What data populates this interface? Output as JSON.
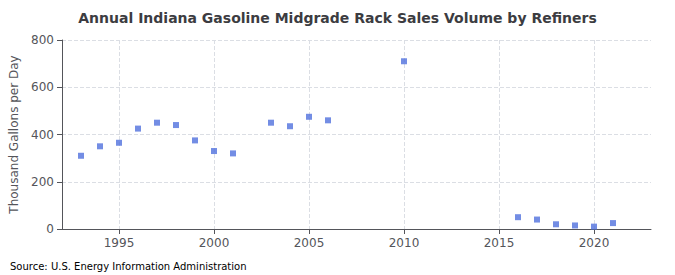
{
  "chart_data": {
    "type": "scatter",
    "title": "Annual Indiana Gasoline Midgrade Rack Sales Volume by Refiners",
    "ylabel": "Thousand Gallons per Day",
    "annotation": "Source: U.S. Energy Information Administration",
    "x": [
      1993,
      1994,
      1995,
      1996,
      1997,
      1998,
      1999,
      2000,
      2001,
      2003,
      2004,
      2005,
      2006,
      2010,
      2016,
      2017,
      2018,
      2019,
      2020,
      2021
    ],
    "values": [
      310,
      350,
      365,
      425,
      450,
      440,
      375,
      330,
      320,
      450,
      435,
      475,
      460,
      710,
      50,
      40,
      20,
      15,
      10,
      25
    ],
    "marker": "square",
    "xlim": [
      1992,
      2023
    ],
    "xticks": [
      1995,
      2000,
      2005,
      2010,
      2015,
      2020
    ],
    "ylim": [
      0,
      800
    ],
    "yticks": [
      0,
      200,
      400,
      600,
      800
    ],
    "grid": true
  }
}
